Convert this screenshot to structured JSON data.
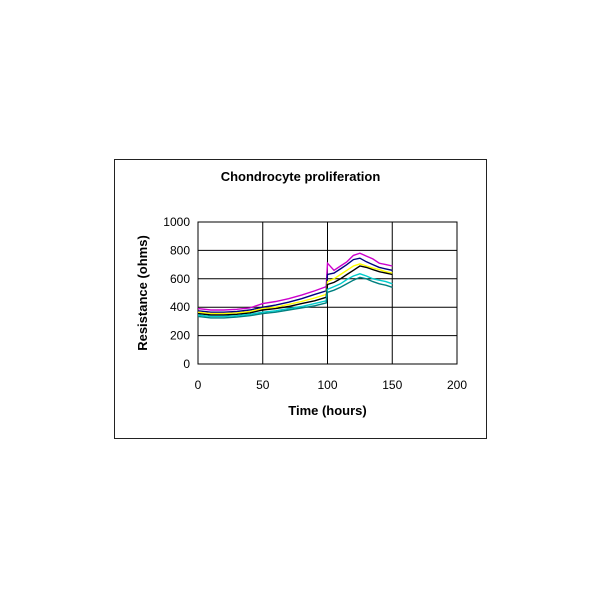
{
  "chart_data": {
    "type": "line",
    "title": "Chondrocyte proliferation",
    "xlabel": "Time (hours)",
    "ylabel": "Resistance (ohms)",
    "xlim": [
      0,
      200
    ],
    "ylim": [
      0,
      1000
    ],
    "xticks": [
      0,
      50,
      100,
      150,
      200
    ],
    "yticks": [
      0,
      200,
      400,
      600,
      800,
      1000
    ],
    "grid": true,
    "legend": "none",
    "series": [
      {
        "color": "#cc00cc",
        "x": [
          0,
          10,
          20,
          30,
          40,
          50,
          60,
          70,
          80,
          90,
          99,
          100,
          105,
          110,
          115,
          120,
          125,
          130,
          135,
          140,
          145,
          150
        ],
        "y": [
          390,
          380,
          380,
          385,
          395,
          425,
          440,
          460,
          485,
          515,
          545,
          710,
          660,
          690,
          720,
          765,
          780,
          760,
          740,
          710,
          700,
          690
        ]
      },
      {
        "color": "#000080",
        "x": [
          0,
          10,
          20,
          30,
          40,
          50,
          60,
          70,
          80,
          90,
          99,
          100,
          105,
          110,
          115,
          120,
          125,
          130,
          135,
          140,
          145,
          150
        ],
        "y": [
          375,
          365,
          365,
          370,
          380,
          400,
          415,
          435,
          460,
          490,
          515,
          630,
          640,
          670,
          700,
          735,
          745,
          720,
          700,
          680,
          670,
          660
        ]
      },
      {
        "color": "#ffff00",
        "x": [
          0,
          10,
          20,
          30,
          40,
          50,
          60,
          70,
          80,
          90,
          99,
          100,
          105,
          110,
          115,
          120,
          125,
          130,
          135,
          140,
          145,
          150
        ],
        "y": [
          365,
          355,
          355,
          360,
          370,
          390,
          400,
          420,
          440,
          465,
          490,
          580,
          600,
          630,
          660,
          690,
          705,
          690,
          675,
          665,
          650,
          640
        ]
      },
      {
        "color": "#000000",
        "x": [
          0,
          10,
          20,
          30,
          40,
          50,
          60,
          70,
          80,
          90,
          99,
          100,
          105,
          110,
          115,
          120,
          125,
          130,
          135,
          140,
          145,
          150
        ],
        "y": [
          355,
          345,
          345,
          350,
          360,
          380,
          390,
          405,
          425,
          445,
          470,
          560,
          575,
          600,
          630,
          660,
          690,
          680,
          665,
          650,
          640,
          630
        ]
      },
      {
        "color": "#00cccc",
        "x": [
          0,
          10,
          20,
          30,
          40,
          50,
          60,
          70,
          80,
          90,
          99,
          100,
          105,
          110,
          115,
          120,
          125,
          130,
          135,
          140,
          145,
          150
        ],
        "y": [
          345,
          335,
          335,
          340,
          350,
          365,
          375,
          390,
          405,
          425,
          445,
          525,
          545,
          565,
          595,
          620,
          635,
          620,
          600,
          590,
          580,
          565
        ]
      },
      {
        "color": "#008080",
        "x": [
          0,
          10,
          20,
          30,
          40,
          50,
          60,
          70,
          80,
          90,
          99,
          100,
          105,
          110,
          115,
          120,
          125,
          130,
          135,
          140,
          145,
          150
        ],
        "y": [
          335,
          325,
          325,
          330,
          340,
          355,
          365,
          380,
          395,
          410,
          430,
          505,
          520,
          540,
          565,
          590,
          610,
          600,
          580,
          565,
          555,
          540
        ]
      }
    ]
  }
}
